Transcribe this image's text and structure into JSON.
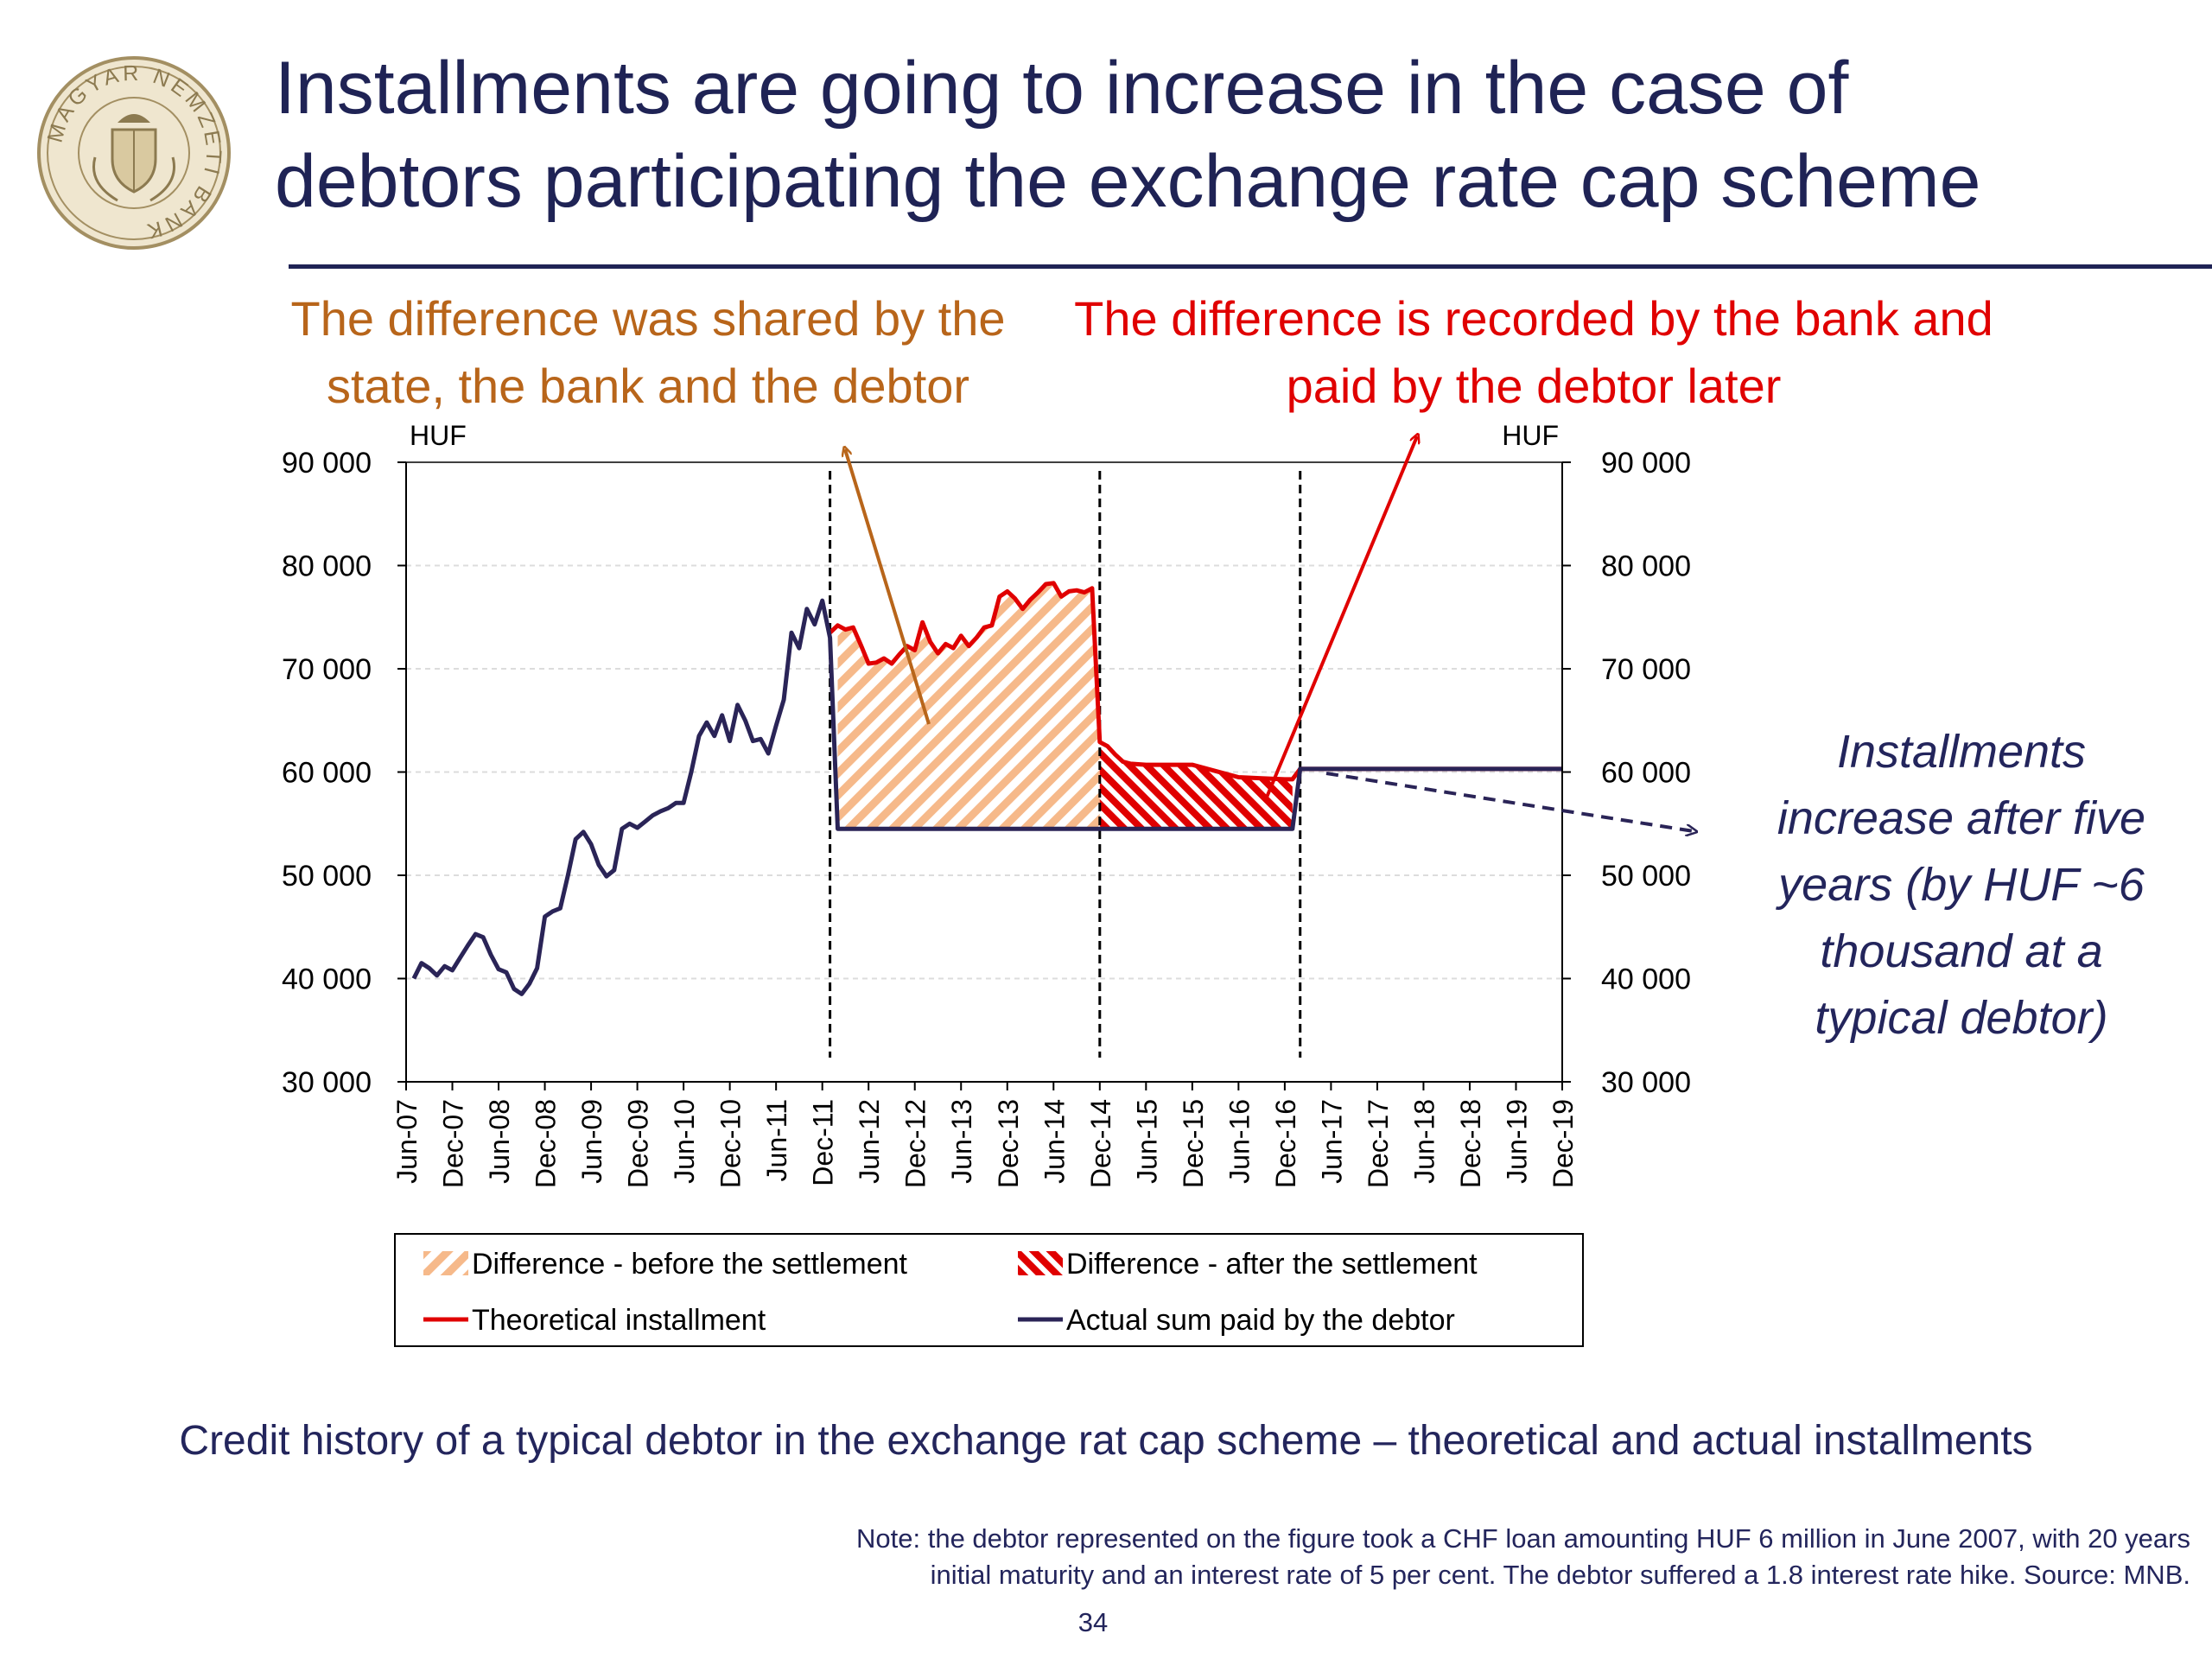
{
  "title_line1": "Installments are going to increase in the case of",
  "title_line2": "debtors participating the exchange rate cap scheme",
  "logo": {
    "icon": "mnb-seal-icon",
    "text": "MAGYAR NEMZETI BANK"
  },
  "annotations": {
    "left_line1": "The difference was shared by the",
    "left_line2": "state, the bank and the debtor",
    "right_line1": "The difference is recorded by the bank and",
    "right_line2": "paid by the debtor later",
    "side_lines": [
      "Installments",
      "increase after five",
      "years (by HUF ~6",
      "thousand at a",
      "typical debtor)"
    ]
  },
  "caption": "Credit history of a typical debtor in the exchange rat cap scheme – theoretical and actual installments",
  "note_line1": "Note: the debtor represented on the figure took a CHF loan amounting HUF 6 million in June 2007, with 20 years",
  "note_line2": "initial maturity and an interest rate of 5 per cent. The debtor suffered a 1.8 interest rate hike. Source: MNB.",
  "page_number": "34",
  "colors": {
    "title": "#1f2355",
    "annotation_left": "#b8651a",
    "annotation_right": "#e00000",
    "actual": "#2a2457",
    "theoretical": "#e00000",
    "diff_before": "#f4b183",
    "diff_after": "#e00000"
  },
  "chart_data": {
    "type": "line",
    "ylabel_left": "HUF",
    "ylabel_right": "HUF",
    "ylim": [
      30000,
      90000
    ],
    "yticks": [
      30000,
      40000,
      50000,
      60000,
      70000,
      80000,
      90000
    ],
    "ytick_labels": [
      "30 000",
      "40 000",
      "50 000",
      "60 000",
      "70 000",
      "80 000",
      "90 000"
    ],
    "xlim": [
      "2007-06",
      "2019-12"
    ],
    "xticks": [
      "Jun-07",
      "Dec-07",
      "Jun-08",
      "Dec-08",
      "Jun-09",
      "Dec-09",
      "Jun-10",
      "Dec-10",
      "Jun-11",
      "Dec-11",
      "Jun-12",
      "Dec-12",
      "Jun-13",
      "Dec-13",
      "Jun-14",
      "Dec-14",
      "Jun-15",
      "Dec-15",
      "Jun-16",
      "Dec-16",
      "Jun-17",
      "Dec-17",
      "Jun-18",
      "Dec-18",
      "Jun-19",
      "Dec-19"
    ],
    "grid": true,
    "legend_position": "bottom",
    "vertical_markers": [
      "2012-01",
      "2014-12",
      "2017-02"
    ],
    "series": [
      {
        "name": "Actual sum paid by the debtor",
        "color": "#2a2457",
        "points": [
          [
            "2007-07",
            40000
          ],
          [
            "2007-08",
            41500
          ],
          [
            "2007-09",
            41000
          ],
          [
            "2007-10",
            40300
          ],
          [
            "2007-11",
            41200
          ],
          [
            "2007-12",
            40800
          ],
          [
            "2008-01",
            42000
          ],
          [
            "2008-02",
            43200
          ],
          [
            "2008-03",
            44300
          ],
          [
            "2008-04",
            44000
          ],
          [
            "2008-05",
            42300
          ],
          [
            "2008-06",
            40900
          ],
          [
            "2008-07",
            40600
          ],
          [
            "2008-08",
            39000
          ],
          [
            "2008-09",
            38500
          ],
          [
            "2008-10",
            39500
          ],
          [
            "2008-11",
            41000
          ],
          [
            "2008-12",
            46000
          ],
          [
            "2009-01",
            46500
          ],
          [
            "2009-02",
            46800
          ],
          [
            "2009-03",
            50000
          ],
          [
            "2009-04",
            53500
          ],
          [
            "2009-05",
            54200
          ],
          [
            "2009-06",
            53000
          ],
          [
            "2009-07",
            51000
          ],
          [
            "2009-08",
            49900
          ],
          [
            "2009-09",
            50500
          ],
          [
            "2009-10",
            54500
          ],
          [
            "2009-11",
            55000
          ],
          [
            "2009-12",
            54600
          ],
          [
            "2010-01",
            55200
          ],
          [
            "2010-02",
            55800
          ],
          [
            "2010-03",
            56200
          ],
          [
            "2010-04",
            56500
          ],
          [
            "2010-05",
            57000
          ],
          [
            "2010-06",
            57000
          ],
          [
            "2010-07",
            60000
          ],
          [
            "2010-08",
            63500
          ],
          [
            "2010-09",
            64800
          ],
          [
            "2010-10",
            63500
          ],
          [
            "2010-11",
            65500
          ],
          [
            "2010-12",
            63000
          ],
          [
            "2011-01",
            66500
          ],
          [
            "2011-02",
            65000
          ],
          [
            "2011-03",
            63000
          ],
          [
            "2011-04",
            63200
          ],
          [
            "2011-05",
            61800
          ],
          [
            "2011-06",
            64500
          ],
          [
            "2011-07",
            67000
          ],
          [
            "2011-08",
            73500
          ],
          [
            "2011-09",
            72000
          ],
          [
            "2011-10",
            75800
          ],
          [
            "2011-11",
            74300
          ],
          [
            "2011-12",
            76600
          ],
          [
            "2012-01",
            73000
          ],
          [
            "2012-02",
            54500
          ],
          [
            "2012-06",
            54500
          ],
          [
            "2013-01",
            54500
          ],
          [
            "2014-01",
            54500
          ],
          [
            "2014-12",
            54500
          ],
          [
            "2015-06",
            54500
          ],
          [
            "2016-01",
            54500
          ],
          [
            "2016-06",
            54500
          ],
          [
            "2017-01",
            54500
          ],
          [
            "2017-02",
            60300
          ],
          [
            "2019-12",
            60300
          ]
        ]
      },
      {
        "name": "Theoretical installment",
        "color": "#e00000",
        "points": [
          [
            "2012-01",
            73500
          ],
          [
            "2012-02",
            74200
          ],
          [
            "2012-03",
            73800
          ],
          [
            "2012-04",
            74000
          ],
          [
            "2012-05",
            72300
          ],
          [
            "2012-06",
            70500
          ],
          [
            "2012-07",
            70600
          ],
          [
            "2012-08",
            71000
          ],
          [
            "2012-09",
            70500
          ],
          [
            "2012-10",
            71400
          ],
          [
            "2012-11",
            72200
          ],
          [
            "2012-12",
            71800
          ],
          [
            "2013-01",
            74500
          ],
          [
            "2013-02",
            72600
          ],
          [
            "2013-03",
            71500
          ],
          [
            "2013-04",
            72400
          ],
          [
            "2013-05",
            72000
          ],
          [
            "2013-06",
            73200
          ],
          [
            "2013-07",
            72200
          ],
          [
            "2013-08",
            73000
          ],
          [
            "2013-09",
            74000
          ],
          [
            "2013-10",
            74200
          ],
          [
            "2013-11",
            77000
          ],
          [
            "2013-12",
            77500
          ],
          [
            "2014-01",
            76800
          ],
          [
            "2014-02",
            75800
          ],
          [
            "2014-03",
            76700
          ],
          [
            "2014-04",
            77400
          ],
          [
            "2014-05",
            78200
          ],
          [
            "2014-06",
            78300
          ],
          [
            "2014-07",
            77000
          ],
          [
            "2014-08",
            77500
          ],
          [
            "2014-09",
            77600
          ],
          [
            "2014-10",
            77400
          ],
          [
            "2014-11",
            77800
          ],
          [
            "2014-12",
            62900
          ],
          [
            "2015-01",
            62500
          ],
          [
            "2015-02",
            61700
          ],
          [
            "2015-03",
            61000
          ],
          [
            "2015-04",
            60800
          ],
          [
            "2015-06",
            60700
          ],
          [
            "2015-09",
            60700
          ],
          [
            "2015-12",
            60700
          ],
          [
            "2016-03",
            60100
          ],
          [
            "2016-06",
            59500
          ],
          [
            "2016-09",
            59400
          ],
          [
            "2016-12",
            59300
          ],
          [
            "2017-01",
            59300
          ],
          [
            "2017-02",
            60300
          ],
          [
            "2019-12",
            60300
          ]
        ]
      }
    ],
    "areas": [
      {
        "name": "Difference - before the settlement",
        "from": "2012-02",
        "to": "2014-12",
        "fill": "#f4b183",
        "pattern": "light-diagonal"
      },
      {
        "name": "Difference - after the settlement",
        "from": "2014-12",
        "to": "2017-01",
        "fill": "#e00000",
        "pattern": "dark-diagonal"
      }
    ],
    "legend": [
      {
        "label": "Difference - before the settlement",
        "kind": "area-light"
      },
      {
        "label": "Difference - after the settlement",
        "kind": "area-dark"
      },
      {
        "label": "Theoretical installment",
        "kind": "line-red"
      },
      {
        "label": "Actual sum paid by the debtor",
        "kind": "line-navy"
      }
    ]
  }
}
